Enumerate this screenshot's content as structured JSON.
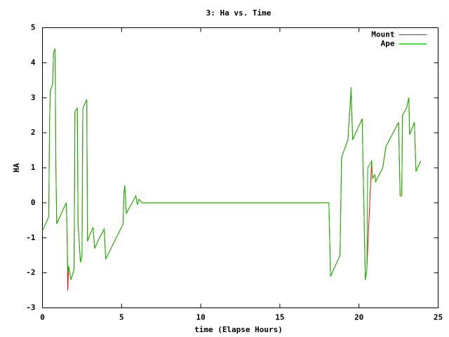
{
  "chart_data": {
    "type": "line",
    "title": "3: Ha vs. Time",
    "x_label": "time (Elapse Hours)",
    "y_label": "HA",
    "legend": "top-right",
    "grid": false,
    "xlim": [
      0,
      25
    ],
    "xticks": [
      0,
      5,
      10,
      15,
      20,
      25
    ],
    "ylim": [
      -3,
      5
    ],
    "yticks": [
      -3,
      -2,
      -1,
      0,
      1,
      2,
      3,
      4,
      5
    ],
    "x": [
      0,
      0.3,
      0.4,
      0.45,
      0.5,
      0.65,
      0.7,
      0.8,
      0.85,
      0.9,
      1.5,
      1.55,
      1.6,
      1.65,
      1.8,
      2.0,
      2.05,
      2.2,
      2.25,
      2.4,
      2.5,
      2.55,
      2.8,
      2.85,
      3.0,
      3.2,
      3.3,
      3.6,
      3.9,
      4.0,
      5.1,
      5.15,
      5.2,
      5.3,
      5.9,
      6.0,
      6.1,
      6.3,
      18.1,
      18.2,
      18.8,
      18.9,
      19.3,
      19.4,
      19.5,
      19.6,
      19.8,
      20.2,
      20.4,
      20.5,
      20.55,
      20.8,
      20.85,
      21.0,
      21.05,
      21.5,
      21.7,
      22.5,
      22.6,
      22.7,
      22.75,
      23.0,
      23.15,
      23.2,
      23.5,
      23.6,
      23.9
    ],
    "series": [
      {
        "name": "Mount",
        "color": "#ff0000",
        "values": [
          -0.8,
          -0.5,
          -0.4,
          2.3,
          3.2,
          3.4,
          4.3,
          4.4,
          1.0,
          -0.6,
          0.0,
          -0.6,
          -2.5,
          -1.8,
          -2.2,
          -1.9,
          2.6,
          2.7,
          -0.6,
          -1.7,
          -1.5,
          2.7,
          2.95,
          -1.1,
          -0.9,
          -0.7,
          -1.3,
          -1.0,
          -0.75,
          -1.6,
          -0.6,
          0.3,
          0.5,
          -0.3,
          0.2,
          -0.05,
          0.1,
          0.0,
          0.0,
          -2.1,
          -1.5,
          1.3,
          1.8,
          2.5,
          3.2,
          1.8,
          2.0,
          2.4,
          -2.2,
          -1.9,
          -1.3,
          1.2,
          0.7,
          0.8,
          0.6,
          1.0,
          1.6,
          2.3,
          0.2,
          0.2,
          2.5,
          2.7,
          3.0,
          1.95,
          2.3,
          0.9,
          1.2
        ]
      },
      {
        "name": "Ape",
        "color": "#00c000",
        "values": [
          -0.8,
          -0.5,
          -0.4,
          2.3,
          3.2,
          3.4,
          4.3,
          4.4,
          1.0,
          -0.6,
          0.0,
          -0.6,
          -2.0,
          -1.8,
          -2.2,
          -1.9,
          2.6,
          2.7,
          -0.6,
          -1.7,
          -1.5,
          2.7,
          2.95,
          -1.1,
          -0.9,
          -0.7,
          -1.3,
          -1.0,
          -0.75,
          -1.6,
          -0.6,
          0.3,
          0.5,
          -0.3,
          0.2,
          -0.05,
          0.1,
          0.0,
          0.0,
          -2.1,
          -1.5,
          1.3,
          1.8,
          2.5,
          3.3,
          1.8,
          2.0,
          2.4,
          -2.2,
          -1.9,
          1.0,
          1.2,
          0.7,
          0.8,
          0.6,
          1.0,
          1.6,
          2.3,
          0.2,
          0.2,
          2.5,
          2.7,
          3.0,
          1.95,
          2.3,
          0.9,
          1.2
        ]
      }
    ]
  }
}
